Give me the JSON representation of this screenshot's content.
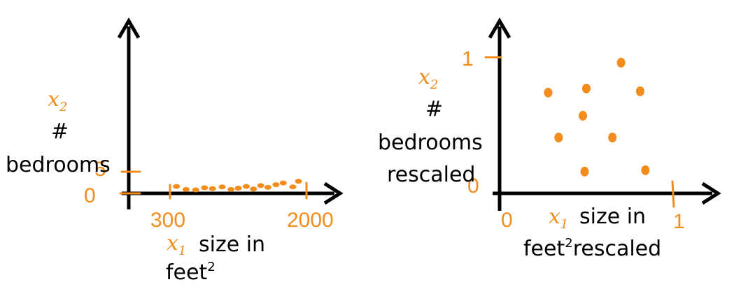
{
  "accent_color": "#f28c1c",
  "axis_color": "#000000",
  "left_plot": {
    "y_var": "x",
    "y_var_sub": "2",
    "y_label_line1": "#",
    "y_label_line2": "bedrooms",
    "y_tick_top": "5",
    "y_tick_bottom": "0",
    "x_tick_low": "300",
    "x_tick_high": "2000",
    "x_var": "x",
    "x_var_sub": "1",
    "x_label_line1": "size in",
    "x_label_line2": "feet",
    "x_label_sup": "2",
    "points": [
      {
        "x": 380,
        "y": 1.6
      },
      {
        "x": 500,
        "y": 0.9
      },
      {
        "x": 620,
        "y": 0.8
      },
      {
        "x": 730,
        "y": 1.3
      },
      {
        "x": 830,
        "y": 1.1
      },
      {
        "x": 950,
        "y": 1.5
      },
      {
        "x": 1060,
        "y": 0.9
      },
      {
        "x": 1150,
        "y": 1.2
      },
      {
        "x": 1250,
        "y": 1.6
      },
      {
        "x": 1340,
        "y": 1.0
      },
      {
        "x": 1430,
        "y": 1.8
      },
      {
        "x": 1520,
        "y": 1.4
      },
      {
        "x": 1620,
        "y": 2.0
      },
      {
        "x": 1710,
        "y": 2.4
      },
      {
        "x": 1830,
        "y": 1.5
      },
      {
        "x": 1900,
        "y": 2.8
      }
    ]
  },
  "right_plot": {
    "y_var": "x",
    "y_var_sub": "2",
    "y_label_line1": "#",
    "y_label_line2": "bedrooms",
    "y_label_line3": "rescaled",
    "y_tick_top": "1",
    "y_tick_bottom": "0",
    "x_tick_low": "0",
    "x_tick_high": "1",
    "x_var": "x",
    "x_var_sub": "1",
    "x_label_line1": "size in",
    "x_label_line2": "feet",
    "x_label_sup": "2",
    "x_label_line2_suffix": "rescaled",
    "points": [
      {
        "x": 0.28,
        "y": 0.74
      },
      {
        "x": 0.5,
        "y": 0.77
      },
      {
        "x": 0.7,
        "y": 0.96
      },
      {
        "x": 0.81,
        "y": 0.75
      },
      {
        "x": 0.48,
        "y": 0.57
      },
      {
        "x": 0.34,
        "y": 0.41
      },
      {
        "x": 0.65,
        "y": 0.41
      },
      {
        "x": 0.49,
        "y": 0.16
      },
      {
        "x": 0.84,
        "y": 0.17
      }
    ]
  }
}
